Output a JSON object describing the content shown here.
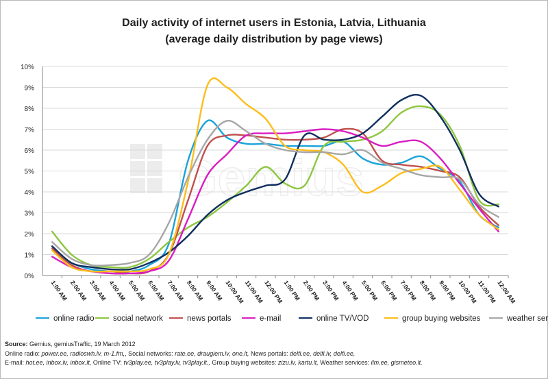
{
  "chart_data": {
    "type": "line",
    "title": "Daily activity of internet users in Estonia, Latvia, Lithuania",
    "subtitle": "(average daily distribution by page views)",
    "x": [
      "1:00 AM",
      "2:00 AM",
      "3:00 AM",
      "4:00 AM",
      "5:00 AM",
      "6:00 AM",
      "7:00 AM",
      "8:00 AM",
      "9:00 AM",
      "10:00 AM",
      "11:00 AM",
      "12:00 PM",
      "1:00 PM",
      "2:00 PM",
      "3:00 PM",
      "4:00 PM",
      "5:00 PM",
      "6:00 PM",
      "7:00 PM",
      "8:00 PM",
      "9:00 PM",
      "10:00 PM",
      "11:00 PM",
      "12:00 AM"
    ],
    "ylim": [
      0,
      10
    ],
    "yticks": [
      "0%",
      "1%",
      "2%",
      "3%",
      "4%",
      "5%",
      "6%",
      "7%",
      "8%",
      "9%",
      "10%"
    ],
    "grid": "horizontal",
    "legend": "bottom",
    "series": [
      {
        "name": "online radio",
        "color": "#1aa3d9",
        "values": [
          1.2,
          0.6,
          0.3,
          0.2,
          0.2,
          0.5,
          1.5,
          5.5,
          7.4,
          6.6,
          6.3,
          6.3,
          6.2,
          6.2,
          6.2,
          6.4,
          5.6,
          5.3,
          5.4,
          5.7,
          5.1,
          4.5,
          2.9,
          2.3
        ]
      },
      {
        "name": "social network",
        "color": "#8dc63f",
        "values": [
          2.1,
          1.0,
          0.5,
          0.4,
          0.4,
          0.8,
          1.6,
          2.3,
          2.8,
          3.5,
          4.3,
          5.2,
          4.4,
          4.3,
          6.2,
          6.4,
          6.5,
          6.9,
          7.8,
          8.1,
          7.7,
          6.2,
          3.6,
          3.4
        ]
      },
      {
        "name": "news portals",
        "color": "#c0504d",
        "values": [
          1.3,
          0.5,
          0.2,
          0.2,
          0.1,
          0.2,
          1.0,
          3.6,
          6.2,
          6.7,
          6.7,
          6.6,
          6.5,
          6.5,
          6.6,
          7.0,
          6.8,
          5.5,
          5.3,
          5.2,
          5.0,
          4.7,
          3.3,
          2.4
        ]
      },
      {
        "name": "e-mail",
        "color": "#d91dc2",
        "values": [
          0.9,
          0.4,
          0.2,
          0.1,
          0.1,
          0.2,
          0.7,
          2.7,
          4.8,
          5.8,
          6.7,
          6.8,
          6.8,
          6.9,
          7.0,
          6.9,
          6.6,
          6.2,
          6.4,
          6.4,
          5.6,
          4.4,
          3.2,
          2.1
        ]
      },
      {
        "name": "online TV/VOD",
        "color": "#0f2f5e",
        "values": [
          1.4,
          0.6,
          0.4,
          0.3,
          0.3,
          0.6,
          1.1,
          1.9,
          2.9,
          3.6,
          4.0,
          4.3,
          4.6,
          6.7,
          6.5,
          6.5,
          6.8,
          7.6,
          8.4,
          8.6,
          7.6,
          6.0,
          3.9,
          3.3
        ]
      },
      {
        "name": "group buying websites",
        "color": "#fdbd1a",
        "values": [
          1.2,
          0.4,
          0.2,
          0.2,
          0.2,
          0.3,
          1.0,
          4.5,
          9.1,
          9.0,
          8.2,
          7.5,
          6.2,
          6.0,
          5.9,
          5.3,
          4.0,
          4.3,
          4.9,
          5.1,
          5.2,
          4.1,
          2.9,
          2.2
        ]
      },
      {
        "name": "weather services",
        "color": "#a6a6a6",
        "values": [
          1.6,
          0.8,
          0.5,
          0.5,
          0.6,
          1.0,
          2.5,
          4.7,
          6.5,
          7.4,
          6.9,
          6.3,
          6.0,
          5.9,
          5.9,
          5.8,
          6.0,
          5.4,
          5.1,
          4.8,
          4.7,
          4.6,
          3.4,
          2.8
        ]
      }
    ]
  },
  "footer": {
    "source_label": "Source:",
    "source_text": " Gemius, gemiusTraffic,  19 March 2012",
    "line2": [
      {
        "t": "Online radio: ",
        "i": false
      },
      {
        "t": "power.ee,  radioswh.lv,  m-1.fm,",
        "i": true
      },
      {
        "t": ", Social networks: ",
        "i": false
      },
      {
        "t": "rate.ee,  draugiem.lv,  one.lt,",
        "i": true
      },
      {
        "t": " News portals: ",
        "i": false
      },
      {
        "t": "delfi.ee,  delfi.lv,  delfi.ee,",
        "i": true
      }
    ],
    "line3": [
      {
        "t": "E-mail: ",
        "i": false
      },
      {
        "t": "hot.ee,  inbox.lv,  inbox.lt,",
        "i": true
      },
      {
        "t": " Online TV: ",
        "i": false
      },
      {
        "t": "tv3play.ee,  tv3play.lv,  tv3play.lt.,",
        "i": true
      },
      {
        "t": " Group buying websites: ",
        "i": false
      },
      {
        "t": "zizu.lv,  kartu.lt,",
        "i": true
      },
      {
        "t": " Weather services: ",
        "i": false
      },
      {
        "t": "ilm.ee,  gismeteo.lt.",
        "i": true
      }
    ]
  }
}
